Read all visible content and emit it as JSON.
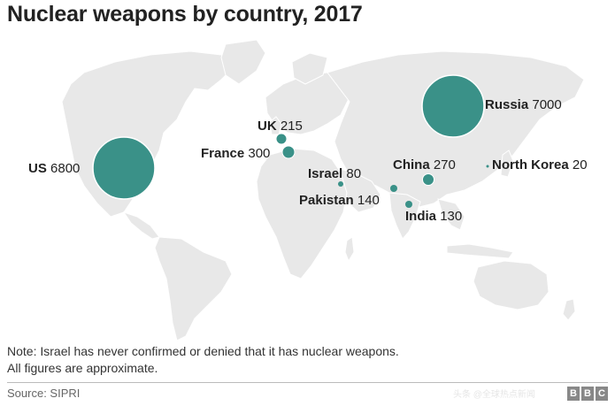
{
  "title": "Nuclear weapons by country, 2017",
  "colors": {
    "land": "#e8e8e8",
    "border": "#ffffff",
    "bubble": "#3a9188",
    "text": "#222222"
  },
  "countries": [
    {
      "id": "us",
      "name": "US",
      "value": "6800"
    },
    {
      "id": "russia",
      "name": "Russia",
      "value": "7000"
    },
    {
      "id": "uk",
      "name": "UK",
      "value": "215"
    },
    {
      "id": "france",
      "name": "France",
      "value": "300"
    },
    {
      "id": "israel",
      "name": "Israel",
      "value": "80"
    },
    {
      "id": "china",
      "name": "China",
      "value": "270"
    },
    {
      "id": "north_korea",
      "name": "North Korea",
      "value": "20"
    },
    {
      "id": "pakistan",
      "name": "Pakistan",
      "value": "140"
    },
    {
      "id": "india",
      "name": "India",
      "value": "130"
    }
  ],
  "note_line1": "Note: Israel has never confirmed or denied that it has nuclear weapons.",
  "note_line2": "All figures are approximate.",
  "source": "Source: SIPRI",
  "logo": [
    "B",
    "B",
    "C"
  ],
  "watermark": "头条 @全球热点新闻"
}
